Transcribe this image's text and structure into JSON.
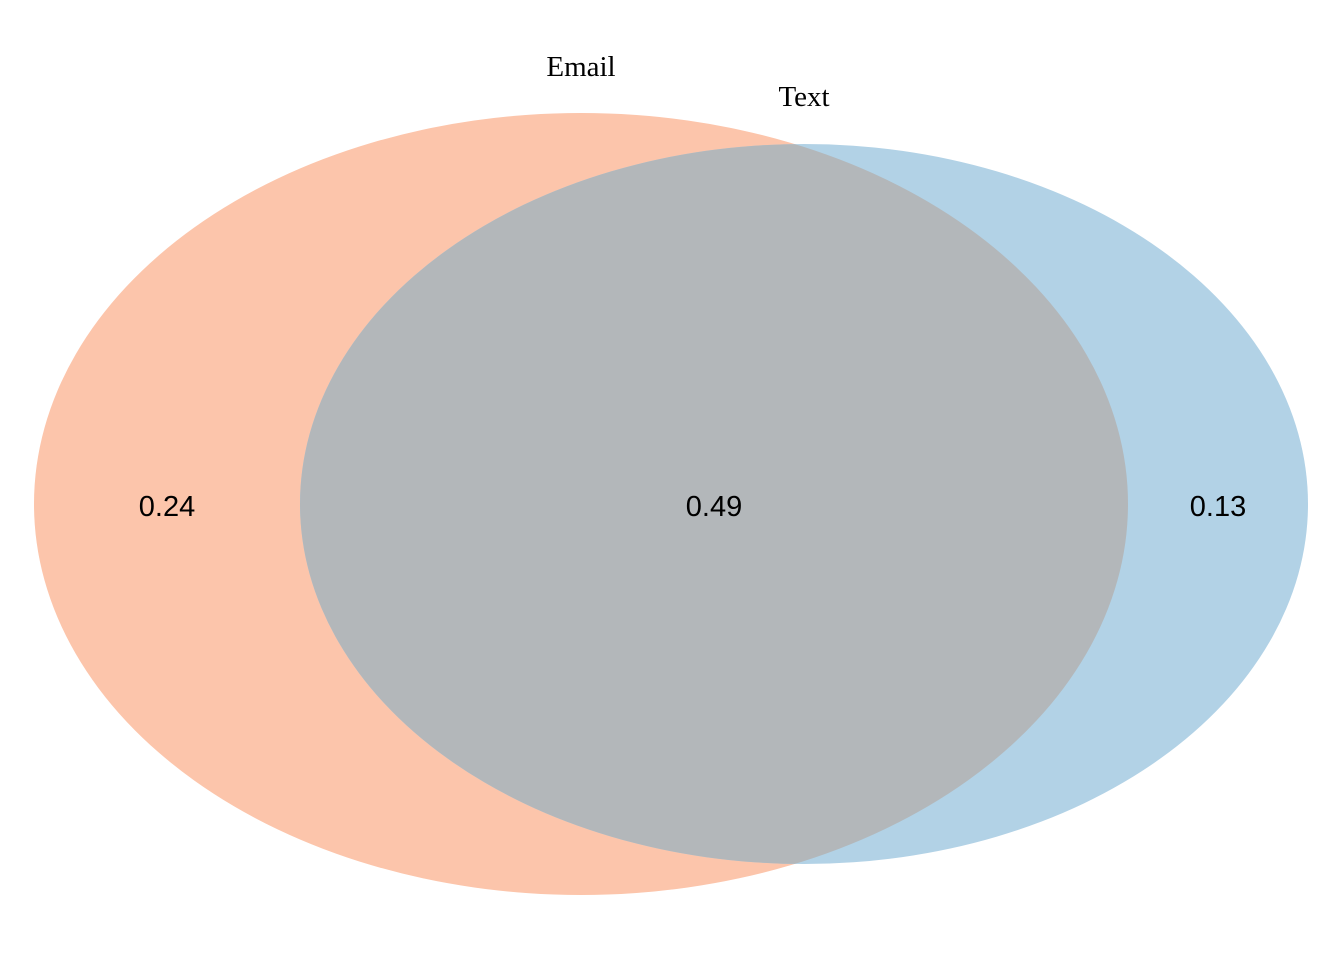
{
  "diagram": {
    "type": "venn",
    "sets": [
      {
        "name": "Email",
        "color": "#FCC5AB"
      },
      {
        "name": "Text",
        "color": "#B2D2E6"
      }
    ],
    "overlap_color": "#B3B7BA",
    "regions": {
      "email_only": "0.24",
      "both": "0.49",
      "text_only": "0.13"
    }
  }
}
